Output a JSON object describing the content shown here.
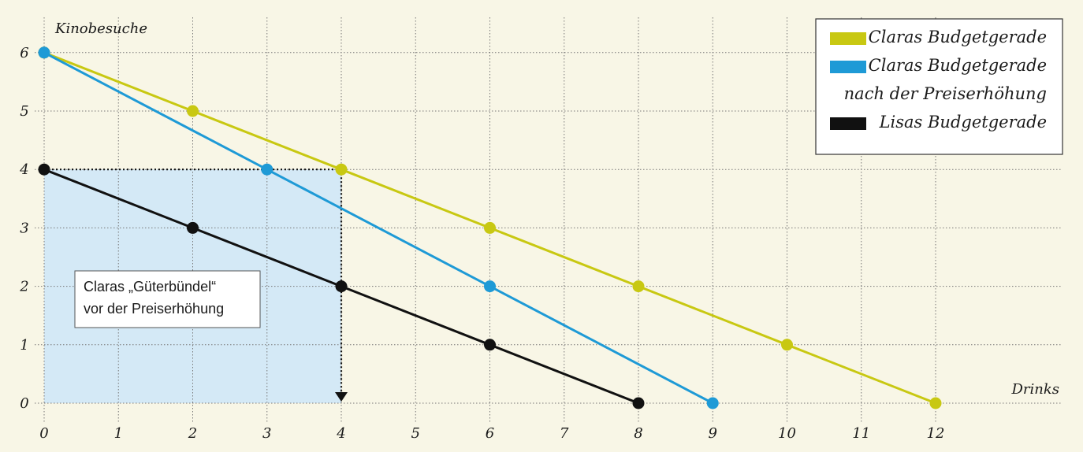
{
  "chart_data": {
    "type": "line",
    "xlabel": "Drinks",
    "ylabel": "Kinobesuche",
    "xlim": [
      0,
      12
    ],
    "ylim": [
      0,
      6
    ],
    "x_ticks": [
      "0",
      "1",
      "2",
      "3",
      "4",
      "5",
      "6",
      "7",
      "8",
      "9",
      "10",
      "11",
      "12"
    ],
    "y_ticks": [
      "0",
      "1",
      "2",
      "3",
      "4",
      "5",
      "6"
    ],
    "grid": true,
    "legend_position": "top-right",
    "series": [
      {
        "name": "Claras Budgetgerade",
        "color": "#c8c812",
        "points": [
          [
            0,
            6
          ],
          [
            2,
            5
          ],
          [
            4,
            4
          ],
          [
            6,
            3
          ],
          [
            8,
            2
          ],
          [
            10,
            1
          ],
          [
            12,
            0
          ]
        ]
      },
      {
        "name": "Claras Budgetgerade nach der Preiserhöhung",
        "color": "#1e9ad6",
        "points": [
          [
            0,
            6
          ],
          [
            3,
            4
          ],
          [
            6,
            2
          ],
          [
            9,
            0
          ]
        ]
      },
      {
        "name": "Lisas Budgetgerade",
        "color": "#111111",
        "points": [
          [
            0,
            4
          ],
          [
            2,
            3
          ],
          [
            4,
            2
          ],
          [
            6,
            1
          ],
          [
            8,
            0
          ]
        ]
      }
    ],
    "legend": [
      {
        "lines": [
          "Claras Budgetgerade"
        ],
        "color": "#c8c812"
      },
      {
        "lines": [
          "Claras Budgetgerade",
          "nach der Preiserhöhung"
        ],
        "color": "#1e9ad6"
      },
      {
        "lines": [
          "Lisas Budgetgerade"
        ],
        "color": "#111111"
      }
    ],
    "highlight_region": {
      "x": [
        0,
        4
      ],
      "y": [
        0,
        4
      ],
      "color": "#d4e9f6"
    },
    "annotation": {
      "lines": [
        "Claras „Güterbündel“",
        "vor der Preiserhöhung"
      ],
      "point": [
        4,
        4
      ]
    }
  }
}
